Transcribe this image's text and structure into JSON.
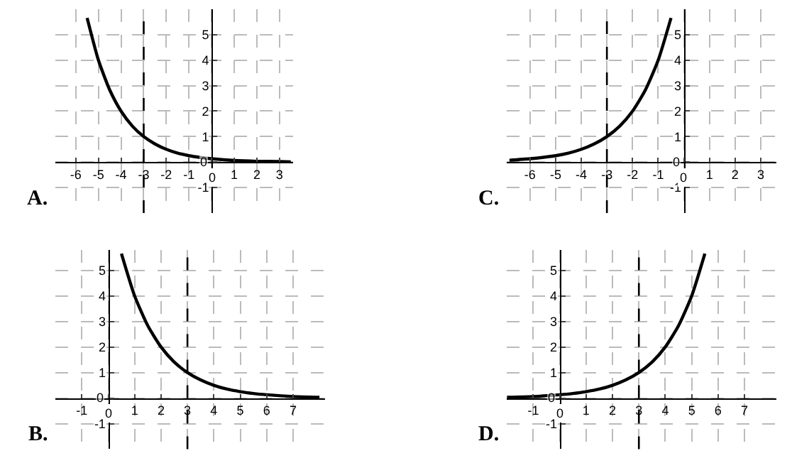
{
  "chart_data": [
    {
      "type": "line",
      "title": "A.",
      "x": [
        -5.5,
        -5,
        -4.5,
        -4,
        -3.5,
        -3,
        -2.5,
        -2,
        -1.5,
        -1,
        -0.5,
        0,
        1,
        2,
        3,
        3.5
      ],
      "series": [
        {
          "color": "#000000",
          "values": [
            5.66,
            4,
            2.83,
            2,
            1.41,
            1,
            0.71,
            0.5,
            0.35,
            0.25,
            0.18,
            0.13,
            0.06,
            0.03,
            0.02,
            0.01
          ]
        }
      ],
      "xlim": [
        -6.9,
        3.6
      ],
      "ylim": [
        -2,
        6
      ],
      "xticks": [
        -6,
        -5,
        -4,
        -3,
        -2,
        -1,
        0,
        1,
        2,
        3
      ],
      "yticks": [
        -1,
        0,
        1,
        2,
        3,
        4,
        5
      ],
      "ref_lines": [
        {
          "axis": "x",
          "value": -3,
          "color": "#000000",
          "line_style": "dashed"
        }
      ],
      "grid": true,
      "marker": "none",
      "line_style": "solid"
    },
    {
      "type": "line",
      "title": "C.",
      "x": [
        -6.8,
        -6,
        -5,
        -4.5,
        -4,
        -3.5,
        -3,
        -2.5,
        -2,
        -1.5,
        -1,
        -0.5
      ],
      "series": [
        {
          "color": "#000000",
          "values": [
            0.07,
            0.13,
            0.25,
            0.35,
            0.5,
            0.71,
            1,
            1.41,
            2,
            2.83,
            4,
            5.66
          ]
        }
      ],
      "xlim": [
        -6.9,
        3.6
      ],
      "ylim": [
        -2,
        6
      ],
      "xticks": [
        -6,
        -5,
        -4,
        -3,
        -2,
        -1,
        0,
        1,
        2,
        3
      ],
      "yticks": [
        -1,
        0,
        1,
        2,
        3,
        4,
        5
      ],
      "ref_lines": [
        {
          "axis": "x",
          "value": -3,
          "color": "#000000",
          "line_style": "dashed"
        }
      ],
      "grid": true,
      "marker": "none",
      "line_style": "solid"
    },
    {
      "type": "line",
      "title": "B.",
      "x": [
        0.5,
        1,
        1.5,
        2,
        2.5,
        3,
        3.5,
        4,
        4.5,
        5,
        5.5,
        6,
        7,
        8
      ],
      "series": [
        {
          "color": "#000000",
          "values": [
            5.66,
            4,
            2.83,
            2,
            1.41,
            1,
            0.71,
            0.5,
            0.35,
            0.25,
            0.18,
            0.13,
            0.06,
            0.03
          ]
        }
      ],
      "xlim": [
        -2,
        8.2
      ],
      "ylim": [
        -2,
        5.8
      ],
      "xticks": [
        -1,
        0,
        1,
        2,
        3,
        4,
        5,
        6,
        7
      ],
      "yticks": [
        -1,
        0,
        1,
        2,
        3,
        4,
        5
      ],
      "ref_lines": [
        {
          "axis": "x",
          "value": 3,
          "color": "#000000",
          "line_style": "dashed"
        }
      ],
      "grid": true,
      "marker": "none",
      "line_style": "solid"
    },
    {
      "type": "line",
      "title": "D.",
      "x": [
        -2,
        -1,
        0,
        0.5,
        1,
        1.5,
        2,
        2.5,
        3,
        3.5,
        4,
        4.5,
        5,
        5.5
      ],
      "series": [
        {
          "color": "#000000",
          "values": [
            0.03,
            0.06,
            0.13,
            0.18,
            0.25,
            0.35,
            0.5,
            0.71,
            1,
            1.41,
            2,
            2.83,
            4,
            5.66
          ]
        }
      ],
      "xlim": [
        -2,
        8.2
      ],
      "ylim": [
        -2,
        5.8
      ],
      "xticks": [
        -1,
        0,
        1,
        2,
        3,
        4,
        5,
        6,
        7
      ],
      "yticks": [
        -1,
        0,
        1,
        2,
        3,
        4,
        5
      ],
      "ref_lines": [
        {
          "axis": "x",
          "value": 3,
          "color": "#000000",
          "line_style": "dashed"
        }
      ],
      "grid": true,
      "marker": "none",
      "line_style": "solid"
    }
  ]
}
